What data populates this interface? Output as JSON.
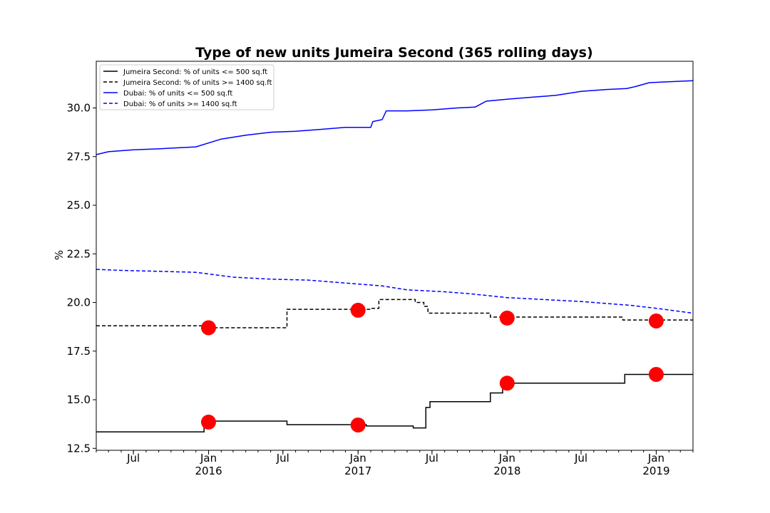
{
  "chart_data": {
    "type": "line",
    "title": "Type of new units Jumeira Second (365 rolling days)",
    "xlabel": "",
    "ylabel": "%",
    "xlim": [
      "2015-04-01",
      "2019-04-01"
    ],
    "ylim": [
      12.4,
      32.4
    ],
    "y_ticks": [
      12.5,
      15.0,
      17.5,
      20.0,
      22.5,
      25.0,
      27.5,
      30.0
    ],
    "y_tick_labels": [
      "12.5",
      "15.0",
      "17.5",
      "20.0",
      "22.5",
      "25.0",
      "27.5",
      "30.0"
    ],
    "x_major_ticks": [
      {
        "date": "2015-07-01",
        "label": "Jul",
        "sublabel": ""
      },
      {
        "date": "2016-01-01",
        "label": "Jan",
        "sublabel": "2016"
      },
      {
        "date": "2016-07-01",
        "label": "Jul",
        "sublabel": ""
      },
      {
        "date": "2017-01-01",
        "label": "Jan",
        "sublabel": "2017"
      },
      {
        "date": "2017-07-01",
        "label": "Jul",
        "sublabel": ""
      },
      {
        "date": "2018-01-01",
        "label": "Jan",
        "sublabel": "2018"
      },
      {
        "date": "2018-07-01",
        "label": "Jul",
        "sublabel": ""
      },
      {
        "date": "2019-01-01",
        "label": "Jan",
        "sublabel": "2019"
      }
    ],
    "grid": false,
    "legend_position": "top-left",
    "series": [
      {
        "name": "Jumeira Second: % of units <= 500 sq.ft",
        "color": "#000000",
        "style": "solid",
        "step": true,
        "points": [
          [
            "2015-04-01",
            13.35
          ],
          [
            "2015-12-21",
            13.9
          ],
          [
            "2016-07-11",
            13.72
          ],
          [
            "2017-01-21",
            13.65
          ],
          [
            "2017-05-16",
            13.55
          ],
          [
            "2017-06-16",
            14.6
          ],
          [
            "2017-06-26",
            14.9
          ],
          [
            "2017-11-21",
            15.35
          ],
          [
            "2017-12-21",
            15.85
          ],
          [
            "2018-10-16",
            16.3
          ],
          [
            "2019-04-01",
            16.3
          ]
        ]
      },
      {
        "name": "Jumeira Second: % of units >= 1400 sq.ft",
        "color": "#000000",
        "style": "dashed",
        "step": true,
        "points": [
          [
            "2015-04-01",
            18.8
          ],
          [
            "2016-01-06",
            18.7
          ],
          [
            "2016-07-11",
            19.65
          ],
          [
            "2017-02-01",
            19.7
          ],
          [
            "2017-02-21",
            20.15
          ],
          [
            "2017-05-21",
            20.0
          ],
          [
            "2017-06-11",
            19.8
          ],
          [
            "2017-06-21",
            19.45
          ],
          [
            "2017-11-21",
            19.25
          ],
          [
            "2018-10-11",
            19.1
          ],
          [
            "2019-04-01",
            19.1
          ]
        ]
      },
      {
        "name": "Dubai: % of units <= 500 sq.ft",
        "color": "#0000ff",
        "style": "solid",
        "step": false,
        "points": [
          [
            "2015-04-01",
            27.6
          ],
          [
            "2015-05-01",
            27.75
          ],
          [
            "2015-07-01",
            27.85
          ],
          [
            "2015-09-01",
            27.9
          ],
          [
            "2015-12-01",
            28.0
          ],
          [
            "2016-02-01",
            28.4
          ],
          [
            "2016-04-01",
            28.6
          ],
          [
            "2016-06-01",
            28.75
          ],
          [
            "2016-08-01",
            28.8
          ],
          [
            "2016-10-01",
            28.9
          ],
          [
            "2016-12-01",
            29.0
          ],
          [
            "2017-02-01",
            29.0
          ],
          [
            "2017-02-06",
            29.3
          ],
          [
            "2017-03-01",
            29.4
          ],
          [
            "2017-03-11",
            29.85
          ],
          [
            "2017-05-01",
            29.85
          ],
          [
            "2017-07-01",
            29.9
          ],
          [
            "2017-09-01",
            30.0
          ],
          [
            "2017-10-15",
            30.05
          ],
          [
            "2017-11-11",
            30.35
          ],
          [
            "2018-01-01",
            30.45
          ],
          [
            "2018-03-01",
            30.55
          ],
          [
            "2018-05-01",
            30.65
          ],
          [
            "2018-07-01",
            30.85
          ],
          [
            "2018-09-01",
            30.95
          ],
          [
            "2018-10-21",
            31.0
          ],
          [
            "2018-11-11",
            31.1
          ],
          [
            "2018-12-15",
            31.3
          ],
          [
            "2019-02-01",
            31.35
          ],
          [
            "2019-04-01",
            31.4
          ]
        ]
      },
      {
        "name": "Dubai: % of units >= 1400 sq.ft",
        "color": "#0000ff",
        "style": "dashed",
        "step": false,
        "points": [
          [
            "2015-04-01",
            21.7
          ],
          [
            "2015-06-01",
            21.65
          ],
          [
            "2015-09-01",
            21.6
          ],
          [
            "2015-12-01",
            21.55
          ],
          [
            "2016-03-01",
            21.3
          ],
          [
            "2016-06-01",
            21.2
          ],
          [
            "2016-09-01",
            21.15
          ],
          [
            "2016-12-01",
            21.0
          ],
          [
            "2017-03-01",
            20.85
          ],
          [
            "2017-05-01",
            20.65
          ],
          [
            "2017-08-01",
            20.55
          ],
          [
            "2017-10-01",
            20.45
          ],
          [
            "2018-01-01",
            20.25
          ],
          [
            "2018-04-01",
            20.15
          ],
          [
            "2018-07-01",
            20.05
          ],
          [
            "2018-09-01",
            19.95
          ],
          [
            "2018-11-01",
            19.85
          ],
          [
            "2019-01-01",
            19.7
          ],
          [
            "2019-04-01",
            19.45
          ]
        ]
      }
    ],
    "markers": {
      "color": "#ff0000",
      "points": [
        [
          "2016-01-01",
          18.7
        ],
        [
          "2016-01-01",
          13.85
        ],
        [
          "2017-01-01",
          19.6
        ],
        [
          "2017-01-01",
          13.7
        ],
        [
          "2018-01-01",
          19.2
        ],
        [
          "2018-01-01",
          15.85
        ],
        [
          "2019-01-01",
          19.05
        ],
        [
          "2019-01-01",
          16.3
        ]
      ]
    }
  }
}
